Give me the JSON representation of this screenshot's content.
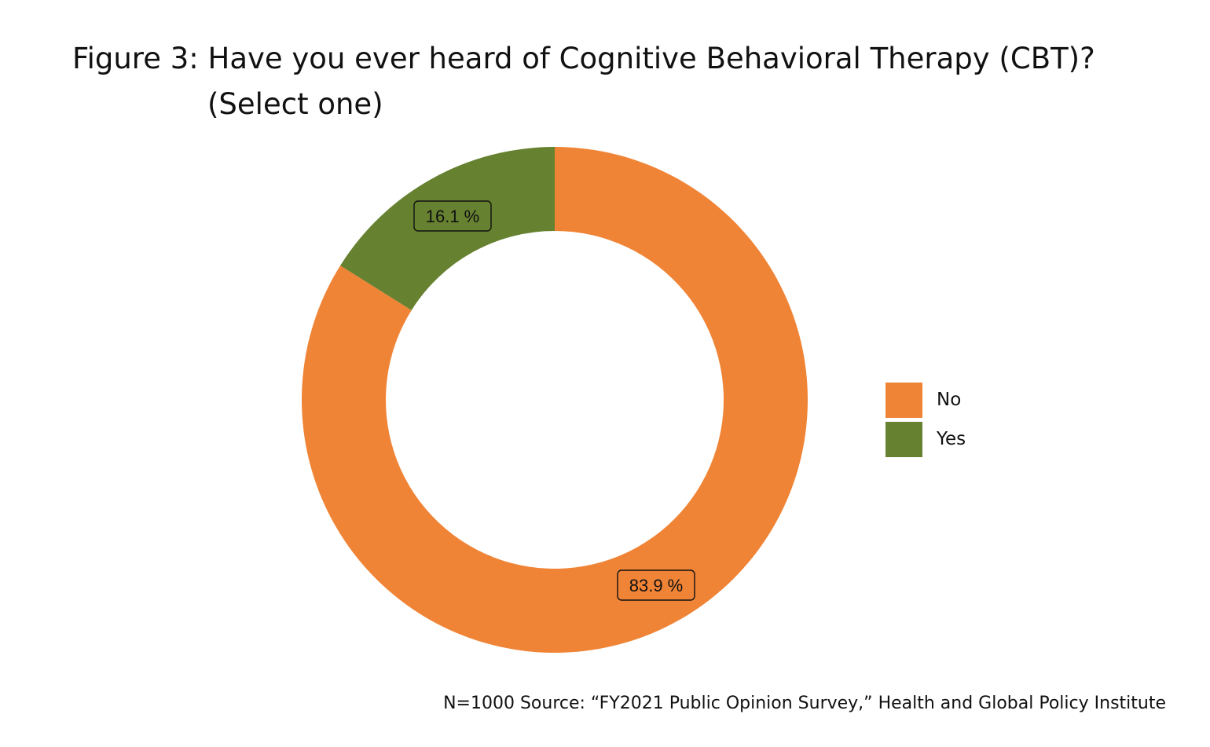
{
  "chart_data": {
    "type": "pie",
    "variant": "donut",
    "title_line1": "Figure 3: Have you ever heard of Cognitive Behavioral Therapy (CBT)?",
    "title_line2": "(Select one)",
    "slices": [
      {
        "label": "No",
        "value": 83.9,
        "value_label": "83.9 %",
        "color": "#F08436"
      },
      {
        "label": "Yes",
        "value": 16.1,
        "value_label": "16.1 %",
        "color": "#668130"
      }
    ],
    "legend": {
      "placement": "right",
      "items": [
        {
          "label": "No",
          "color": "#F08436"
        },
        {
          "label": "Yes",
          "color": "#668130"
        }
      ]
    },
    "note": "N=1000 Source: “FY2021 Public Opinion Survey,” Health and Global Policy Institute"
  }
}
